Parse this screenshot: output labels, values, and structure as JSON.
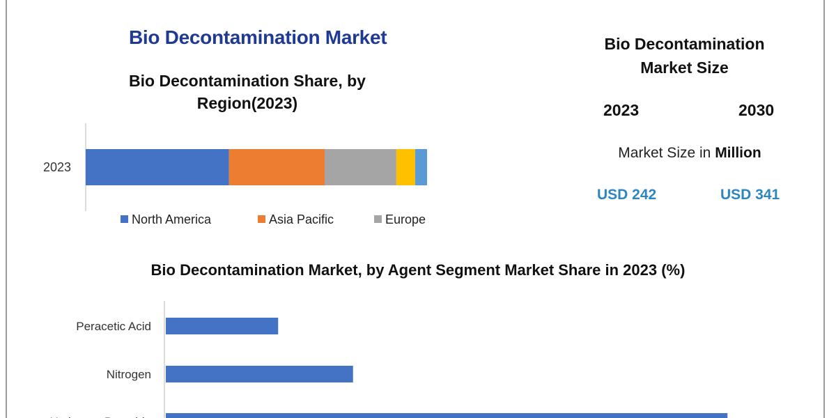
{
  "page": {
    "main_title": "Bio Decontamination Market",
    "market_size_title_line1": "Bio Decontamination",
    "market_size_title_line2": "Market Size",
    "year_start": "2023",
    "year_end": "2030",
    "unit_prefix": "Market Size in",
    "unit_bold": "Million",
    "value_start": "USD 242",
    "value_end": "USD 341"
  },
  "chart_data": [
    {
      "type": "bar",
      "orientation": "horizontal-stacked",
      "title_line1": "Bio Decontamination Share, by",
      "title_line2": "Region(2023)",
      "categories": [
        "2023"
      ],
      "series": [
        {
          "name": "North America",
          "values": [
            42
          ],
          "color": "#4472c4"
        },
        {
          "name": "Asia Pacific",
          "values": [
            28
          ],
          "color": "#ed7d31"
        },
        {
          "name": "Europe",
          "values": [
            21
          ],
          "color": "#a5a5a5"
        },
        {
          "values": [
            5.5
          ],
          "color": "#ffc000"
        },
        {
          "values": [
            3.5
          ],
          "color": "#5b9bd5"
        }
      ],
      "xlim": [
        0,
        100
      ],
      "legend": "bottom",
      "grid": false
    },
    {
      "type": "bar",
      "orientation": "horizontal",
      "title": "Bio Decontamination Market, by Agent Segment Market Share in 2023 (%)",
      "categories": [
        "Peracetic Acid",
        "Nitrogen",
        "Hydrogen Peroxide"
      ],
      "values": [
        15,
        25,
        75
      ],
      "color": "#4472c4",
      "xlim": [
        0,
        80
      ],
      "grid": false
    }
  ]
}
